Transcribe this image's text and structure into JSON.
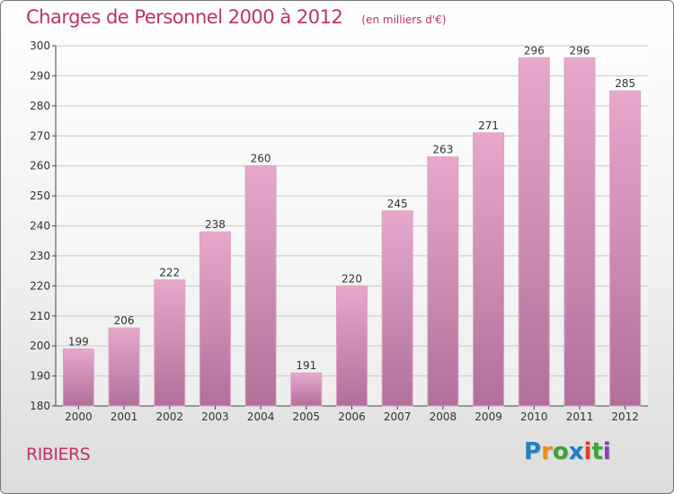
{
  "chart_data": {
    "type": "bar",
    "title": "Charges de Personnel 2000 à 2012",
    "subtitle": "(en milliers d'€)",
    "xlabel": "",
    "ylabel": "",
    "categories": [
      "2000",
      "2001",
      "2002",
      "2003",
      "2004",
      "2005",
      "2006",
      "2007",
      "2008",
      "2009",
      "2010",
      "2011",
      "2012"
    ],
    "values": [
      199,
      206,
      222,
      238,
      260,
      191,
      220,
      245,
      263,
      271,
      296,
      296,
      285
    ],
    "ylim": [
      180,
      300
    ],
    "yticks": [
      180,
      190,
      200,
      210,
      220,
      230,
      240,
      250,
      260,
      270,
      280,
      290,
      300
    ],
    "grid": true,
    "bar_color_top": "#e8a8cc",
    "bar_color_bottom": "#b0709a"
  },
  "footer": {
    "place": "RIBIERS",
    "logo": [
      "P",
      "r",
      "o",
      "x",
      "i",
      "t",
      "i"
    ],
    "logo_colors": [
      "#1f7fc8",
      "#ef8a1a",
      "#3aa536",
      "#1f7fc8",
      "#e33a2a",
      "#3aa536",
      "#8a3fb0"
    ]
  }
}
